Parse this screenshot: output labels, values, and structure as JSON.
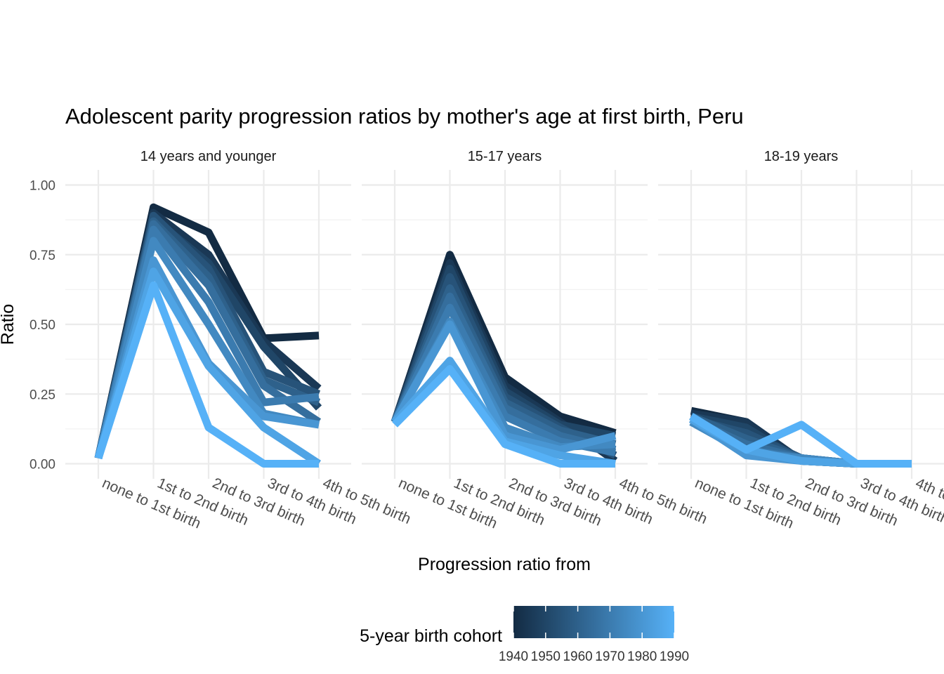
{
  "chart_data": {
    "type": "line",
    "title": "Adolescent parity progression ratios by mother's age at first birth,  Peru",
    "xlabel": "Progression ratio from",
    "ylabel": "Ratio",
    "ylim": [
      0,
      1
    ],
    "y_ticks": [
      "0.00",
      "0.25",
      "0.50",
      "0.75",
      "1.00"
    ],
    "categories": [
      "none to 1st birth",
      "1st to 2nd birth",
      "2nd to 3rd birth",
      "3rd to 4th birth",
      "4th to 5th birth"
    ],
    "grid": true,
    "legend": {
      "title": "5-year birth cohort",
      "position": "bottom",
      "ticks": [
        "1940",
        "1950",
        "1960",
        "1970",
        "1980",
        "1990"
      ],
      "color_low": "#132B43",
      "color_high": "#56B1F7"
    },
    "panels": [
      {
        "label": "14 years and younger",
        "series": [
          {
            "cohort": 1940,
            "values": [
              0.02,
              0.92,
              0.83,
              0.45,
              0.46
            ]
          },
          {
            "cohort": 1945,
            "values": [
              0.02,
              0.9,
              0.75,
              0.44,
              0.27
            ]
          },
          {
            "cohort": 1950,
            "values": [
              0.02,
              0.88,
              0.72,
              0.42,
              0.2
            ]
          },
          {
            "cohort": 1955,
            "values": [
              0.02,
              0.89,
              0.7,
              0.33,
              0.25
            ]
          },
          {
            "cohort": 1960,
            "values": [
              0.02,
              0.87,
              0.67,
              0.3,
              0.22
            ]
          },
          {
            "cohort": 1965,
            "values": [
              0.02,
              0.86,
              0.64,
              0.28,
              0.15
            ]
          },
          {
            "cohort": 1970,
            "values": [
              0.02,
              0.84,
              0.58,
              0.22,
              0.24
            ]
          },
          {
            "cohort": 1975,
            "values": [
              0.02,
              0.8,
              0.5,
              0.18,
              0.14
            ]
          },
          {
            "cohort": 1980,
            "values": [
              0.02,
              0.73,
              0.36,
              0.17,
              0.14
            ]
          },
          {
            "cohort": 1985,
            "values": [
              0.02,
              0.69,
              0.35,
              0.13,
              0.0
            ]
          },
          {
            "cohort": 1990,
            "values": [
              0.02,
              0.64,
              0.13,
              0.0,
              0.0
            ]
          }
        ]
      },
      {
        "label": "15-17 years",
        "series": [
          {
            "cohort": 1940,
            "values": [
              0.15,
              0.75,
              0.31,
              0.17,
              0.11
            ]
          },
          {
            "cohort": 1945,
            "values": [
              0.15,
              0.72,
              0.28,
              0.15,
              0.01
            ]
          },
          {
            "cohort": 1950,
            "values": [
              0.15,
              0.7,
              0.26,
              0.14,
              0.1
            ]
          },
          {
            "cohort": 1955,
            "values": [
              0.15,
              0.67,
              0.24,
              0.13,
              0.03
            ]
          },
          {
            "cohort": 1960,
            "values": [
              0.15,
              0.63,
              0.22,
              0.12,
              0.07
            ]
          },
          {
            "cohort": 1965,
            "values": [
              0.15,
              0.6,
              0.2,
              0.1,
              0.05
            ]
          },
          {
            "cohort": 1970,
            "values": [
              0.15,
              0.56,
              0.17,
              0.08,
              0.04
            ]
          },
          {
            "cohort": 1975,
            "values": [
              0.15,
              0.51,
              0.13,
              0.06,
              0.07
            ]
          },
          {
            "cohort": 1980,
            "values": [
              0.15,
              0.5,
              0.1,
              0.05,
              0.1
            ]
          },
          {
            "cohort": 1985,
            "values": [
              0.15,
              0.37,
              0.08,
              0.03,
              0.0
            ]
          },
          {
            "cohort": 1990,
            "values": [
              0.14,
              0.34,
              0.07,
              0.0,
              0.0
            ]
          }
        ]
      },
      {
        "label": "18-19 years",
        "series": [
          {
            "cohort": 1940,
            "values": [
              0.19,
              0.15,
              0.01,
              0.0,
              0.0
            ]
          },
          {
            "cohort": 1945,
            "values": [
              0.18,
              0.15,
              0.01,
              0.0,
              0.0
            ]
          },
          {
            "cohort": 1950,
            "values": [
              0.17,
              0.13,
              0.01,
              0.0,
              0.0
            ]
          },
          {
            "cohort": 1955,
            "values": [
              0.16,
              0.11,
              0.02,
              0.0,
              0.0
            ]
          },
          {
            "cohort": 1960,
            "values": [
              0.17,
              0.09,
              0.02,
              0.0,
              0.0
            ]
          },
          {
            "cohort": 1965,
            "values": [
              0.16,
              0.07,
              0.02,
              0.0,
              0.0
            ]
          },
          {
            "cohort": 1970,
            "values": [
              0.17,
              0.05,
              0.02,
              0.0,
              0.0
            ]
          },
          {
            "cohort": 1975,
            "values": [
              0.15,
              0.04,
              0.02,
              0.0,
              0.0
            ]
          },
          {
            "cohort": 1980,
            "values": [
              0.16,
              0.03,
              0.01,
              0.0,
              0.0
            ]
          },
          {
            "cohort": 1985,
            "values": [
              0.16,
              0.05,
              0.01,
              0.0,
              0.0
            ]
          },
          {
            "cohort": 1990,
            "values": [
              0.17,
              0.05,
              0.14,
              0.0,
              0.0
            ]
          }
        ]
      }
    ]
  }
}
